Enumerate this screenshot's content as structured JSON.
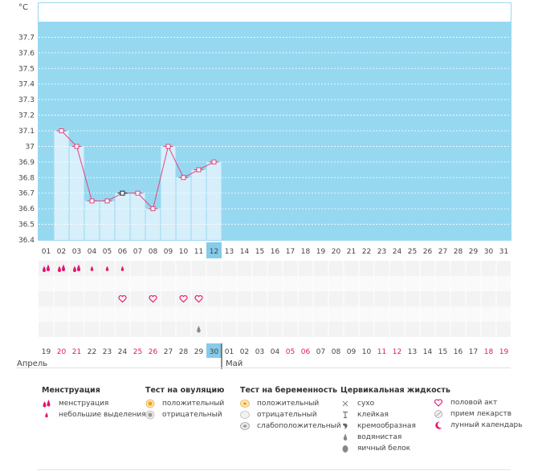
{
  "chart_data": {
    "type": "line",
    "title": "",
    "unit_label": "°C",
    "ylim": [
      36.4,
      37.8
    ],
    "y_ticks": [
      "37.7",
      "37.6",
      "37.5",
      "37.4",
      "37.3",
      "37.2",
      "37.1",
      "37",
      "36.9",
      "36.8",
      "36.7",
      "36.6",
      "36.5",
      "36.4"
    ],
    "x_labels_top": [
      "01",
      "02",
      "03",
      "04",
      "05",
      "06",
      "07",
      "08",
      "09",
      "10",
      "11",
      "12",
      "13",
      "14",
      "15",
      "16",
      "17",
      "18",
      "19",
      "20",
      "21",
      "22",
      "23",
      "24",
      "25",
      "26",
      "27",
      "28",
      "29",
      "30",
      "31"
    ],
    "highlighted_day_index": 11,
    "series": [
      {
        "values": [
          null,
          37.1,
          37.0,
          36.65,
          36.65,
          36.7,
          36.7,
          36.6,
          37.0,
          36.8,
          36.85,
          36.9
        ]
      }
    ],
    "open_marker_index": 5,
    "cycle_days": [
      "19",
      "20",
      "21",
      "22",
      "23",
      "24",
      "25",
      "26",
      "27",
      "28",
      "29",
      "30",
      "01",
      "02",
      "03",
      "04",
      "05",
      "06",
      "07",
      "08",
      "09",
      "10",
      "11",
      "12",
      "13",
      "14",
      "15",
      "16",
      "17",
      "18",
      "19"
    ],
    "cycle_days_red": [
      1,
      2,
      6,
      7,
      16,
      17,
      22,
      23,
      29,
      30
    ],
    "cycle_highlight_index": 11,
    "month_labels": [
      {
        "label": "Апрель",
        "start_index": 0
      },
      {
        "label": "Май",
        "start_index": 12
      }
    ],
    "symptoms": {
      "menstruation_heavy": [
        0,
        1,
        2
      ],
      "menstruation_light": [
        3,
        4,
        5
      ],
      "intercourse": [
        5,
        7,
        9,
        10
      ],
      "cervical_watery": [
        10
      ]
    }
  },
  "legend": {
    "menstruation": {
      "title": "Менструация",
      "items": [
        {
          "label": "менструация",
          "icon": "drop-double-icon"
        },
        {
          "label": "небольшие выделения",
          "icon": "drop-small-icon"
        }
      ]
    },
    "ovulation_test": {
      "title": "Тест на овуляцию",
      "items": [
        {
          "label": "положительный",
          "icon": "ovulation-positive-icon"
        },
        {
          "label": "отрицательный",
          "icon": "ovulation-negative-icon"
        }
      ]
    },
    "pregnancy_test": {
      "title": "Тест на беременность",
      "items": [
        {
          "label": "положительный",
          "icon": "pregnancy-positive-icon"
        },
        {
          "label": "отрицательный",
          "icon": "pregnancy-negative-icon"
        },
        {
          "label": "слабоположительный",
          "icon": "pregnancy-weak-icon"
        }
      ]
    },
    "cervical_fluid": {
      "title": "Цервикальная жидкость",
      "items": [
        {
          "label": "сухо",
          "icon": "dry-icon"
        },
        {
          "label": "клейкая",
          "icon": "sticky-icon"
        },
        {
          "label": "кремообразная",
          "icon": "creamy-icon"
        },
        {
          "label": "водянистая",
          "icon": "watery-icon"
        },
        {
          "label": "яичный белок",
          "icon": "egg-white-icon"
        }
      ]
    },
    "other": {
      "items": [
        {
          "label": "половой акт",
          "icon": "heart-icon"
        },
        {
          "label": "прием лекарств",
          "icon": "pill-icon"
        },
        {
          "label": "лунный календарь",
          "icon": "moon-icon"
        }
      ]
    }
  },
  "colors": {
    "plot_bg": "#97d8f1",
    "bar_fill": "#d7effb",
    "line": "#e0457d",
    "red_day": "#e2166f",
    "highlight_cell": "#86cbe9",
    "grid_row_a": "#f3f3f3",
    "grid_row_b": "#fafafa"
  }
}
